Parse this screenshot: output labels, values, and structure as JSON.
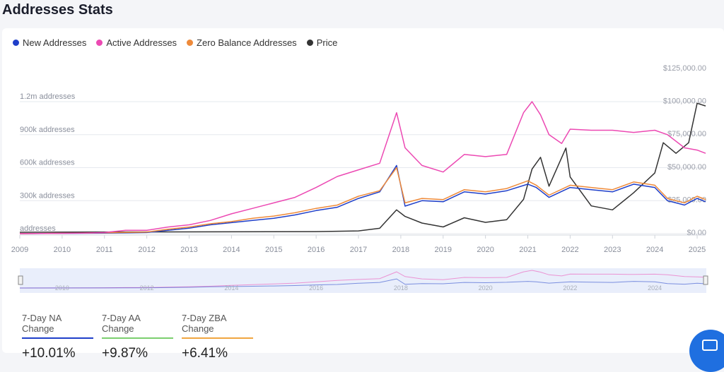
{
  "page": {
    "title": "Addresses Stats"
  },
  "legend": [
    {
      "label": "New Addresses",
      "color": "#1f3fc9"
    },
    {
      "label": "Active Addresses",
      "color": "#ec49b3"
    },
    {
      "label": "Zero Balance Addresses",
      "color": "#ee8a3a"
    },
    {
      "label": "Price",
      "color": "#333333"
    }
  ],
  "stats": [
    {
      "label": "7-Day NA Change",
      "value": "+10.01%",
      "color": "#1f3fc9"
    },
    {
      "label": "7-Day AA Change",
      "value": "+9.87%",
      "color": "#7ccf6f"
    },
    {
      "label": "7-Day ZBA Change",
      "value": "+6.41%",
      "color": "#f0a640"
    }
  ],
  "chart_data": {
    "type": "line",
    "x_ticks": [
      "2009",
      "2010",
      "2011",
      "2012",
      "2013",
      "2014",
      "2015",
      "2016",
      "2017",
      "2018",
      "2019",
      "2020",
      "2021",
      "2022",
      "2023",
      "2024",
      "2025"
    ],
    "left_axis": {
      "ticks": [
        "addresses",
        "300k addresses",
        "600k addresses",
        "900k addresses",
        "1.2m addresses"
      ],
      "values": [
        0,
        300000,
        600000,
        900000,
        1200000
      ],
      "ylim": [
        0,
        1200000
      ]
    },
    "right_axis": {
      "ticks": [
        "$0.00",
        "$25,000.00",
        "$50,000.00",
        "$75,000.00",
        "$100,000.00",
        "$125,000.00"
      ],
      "values": [
        0,
        25000,
        50000,
        75000,
        100000,
        125000
      ],
      "ylim": [
        0,
        125000
      ]
    },
    "series": [
      {
        "name": "Active Addresses",
        "axis": "left",
        "color": "#ec49b3",
        "points": [
          [
            2009,
            0
          ],
          [
            2010.5,
            5000
          ],
          [
            2011,
            10000
          ],
          [
            2011.5,
            30000
          ],
          [
            2012,
            30000
          ],
          [
            2012.5,
            60000
          ],
          [
            2013,
            80000
          ],
          [
            2013.5,
            120000
          ],
          [
            2014,
            180000
          ],
          [
            2014.5,
            230000
          ],
          [
            2015,
            280000
          ],
          [
            2015.5,
            330000
          ],
          [
            2016,
            420000
          ],
          [
            2016.5,
            520000
          ],
          [
            2017,
            580000
          ],
          [
            2017.5,
            640000
          ],
          [
            2017.9,
            1100000
          ],
          [
            2018.1,
            780000
          ],
          [
            2018.5,
            620000
          ],
          [
            2019,
            560000
          ],
          [
            2019.5,
            720000
          ],
          [
            2020,
            700000
          ],
          [
            2020.5,
            720000
          ],
          [
            2020.9,
            1100000
          ],
          [
            2021.1,
            1200000
          ],
          [
            2021.3,
            1080000
          ],
          [
            2021.5,
            900000
          ],
          [
            2021.8,
            820000
          ],
          [
            2022,
            950000
          ],
          [
            2022.5,
            940000
          ],
          [
            2023,
            940000
          ],
          [
            2023.5,
            920000
          ],
          [
            2024,
            940000
          ],
          [
            2024.3,
            900000
          ],
          [
            2024.7,
            780000
          ],
          [
            2025,
            760000
          ],
          [
            2025.2,
            730000
          ]
        ]
      },
      {
        "name": "New Addresses",
        "axis": "left",
        "color": "#1f3fc9",
        "points": [
          [
            2009,
            0
          ],
          [
            2011,
            5000
          ],
          [
            2012,
            10000
          ],
          [
            2012.5,
            30000
          ],
          [
            2013,
            50000
          ],
          [
            2013.5,
            80000
          ],
          [
            2014,
            100000
          ],
          [
            2014.5,
            120000
          ],
          [
            2015,
            140000
          ],
          [
            2015.5,
            170000
          ],
          [
            2016,
            210000
          ],
          [
            2016.5,
            240000
          ],
          [
            2017,
            320000
          ],
          [
            2017.5,
            380000
          ],
          [
            2017.9,
            620000
          ],
          [
            2018.1,
            250000
          ],
          [
            2018.5,
            300000
          ],
          [
            2019,
            290000
          ],
          [
            2019.5,
            380000
          ],
          [
            2020,
            360000
          ],
          [
            2020.5,
            390000
          ],
          [
            2021,
            450000
          ],
          [
            2021.2,
            420000
          ],
          [
            2021.5,
            330000
          ],
          [
            2022,
            420000
          ],
          [
            2022.5,
            400000
          ],
          [
            2023,
            380000
          ],
          [
            2023.5,
            450000
          ],
          [
            2024,
            420000
          ],
          [
            2024.3,
            300000
          ],
          [
            2024.7,
            260000
          ],
          [
            2025,
            320000
          ],
          [
            2025.2,
            290000
          ]
        ]
      },
      {
        "name": "Zero Balance Addresses",
        "axis": "left",
        "color": "#ee8a3a",
        "points": [
          [
            2009,
            0
          ],
          [
            2011,
            8000
          ],
          [
            2012,
            15000
          ],
          [
            2012.5,
            40000
          ],
          [
            2013,
            60000
          ],
          [
            2013.5,
            90000
          ],
          [
            2014,
            110000
          ],
          [
            2014.5,
            140000
          ],
          [
            2015,
            160000
          ],
          [
            2015.5,
            190000
          ],
          [
            2016,
            230000
          ],
          [
            2016.5,
            260000
          ],
          [
            2017,
            340000
          ],
          [
            2017.5,
            390000
          ],
          [
            2017.9,
            600000
          ],
          [
            2018.1,
            280000
          ],
          [
            2018.5,
            320000
          ],
          [
            2019,
            310000
          ],
          [
            2019.5,
            400000
          ],
          [
            2020,
            380000
          ],
          [
            2020.5,
            410000
          ],
          [
            2021,
            480000
          ],
          [
            2021.2,
            440000
          ],
          [
            2021.5,
            350000
          ],
          [
            2022,
            440000
          ],
          [
            2022.5,
            420000
          ],
          [
            2023,
            400000
          ],
          [
            2023.5,
            470000
          ],
          [
            2024,
            440000
          ],
          [
            2024.3,
            320000
          ],
          [
            2024.7,
            280000
          ],
          [
            2025,
            340000
          ],
          [
            2025.2,
            310000
          ]
        ]
      },
      {
        "name": "Price",
        "axis": "right",
        "color": "#333333",
        "points": [
          [
            2009,
            0
          ],
          [
            2016,
            500
          ],
          [
            2017,
            1000
          ],
          [
            2017.5,
            3000
          ],
          [
            2017.9,
            17000
          ],
          [
            2018.1,
            12000
          ],
          [
            2018.5,
            7000
          ],
          [
            2019,
            4000
          ],
          [
            2019.5,
            11000
          ],
          [
            2020,
            7500
          ],
          [
            2020.5,
            9500
          ],
          [
            2020.9,
            25000
          ],
          [
            2021.1,
            48000
          ],
          [
            2021.3,
            57000
          ],
          [
            2021.5,
            35000
          ],
          [
            2021.9,
            64000
          ],
          [
            2022,
            42000
          ],
          [
            2022.5,
            20000
          ],
          [
            2023,
            17000
          ],
          [
            2023.5,
            30000
          ],
          [
            2024,
            45000
          ],
          [
            2024.2,
            68000
          ],
          [
            2024.5,
            60000
          ],
          [
            2024.8,
            68000
          ],
          [
            2025,
            98000
          ],
          [
            2025.2,
            96000
          ]
        ]
      }
    ]
  }
}
